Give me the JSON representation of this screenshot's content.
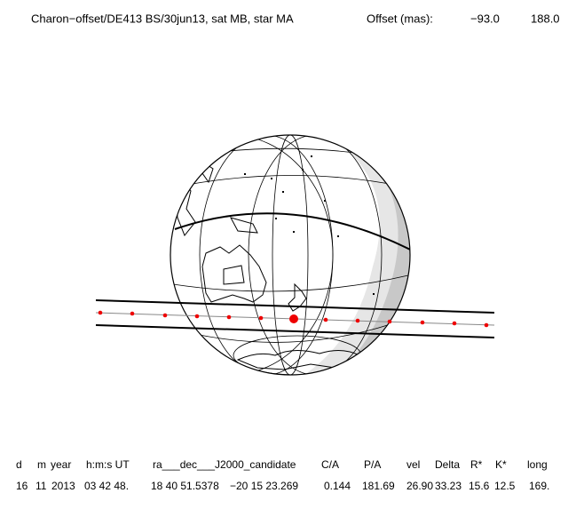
{
  "header": {
    "title": "Charon−offset/DE413 BS/30jun13, sat MB, star MA",
    "offset_label": "Offset (mas):",
    "offset_x": "−93.0",
    "offset_y": "188.0"
  },
  "table": {
    "columns": [
      "d",
      "m",
      "year",
      "h:m:s UT",
      "ra___dec___J2000_candidate",
      "C/A",
      "P/A",
      "vel",
      "Delta",
      "R*",
      "K*",
      "long"
    ],
    "rows": [
      [
        "16",
        "11",
        "2013",
        "03 42 48.",
        "18 40 51.5378",
        "−20 15 23.269",
        "0.144",
        "181.69",
        "26.90",
        "33.23",
        "15.6",
        "12.5",
        "169."
      ]
    ]
  }
}
